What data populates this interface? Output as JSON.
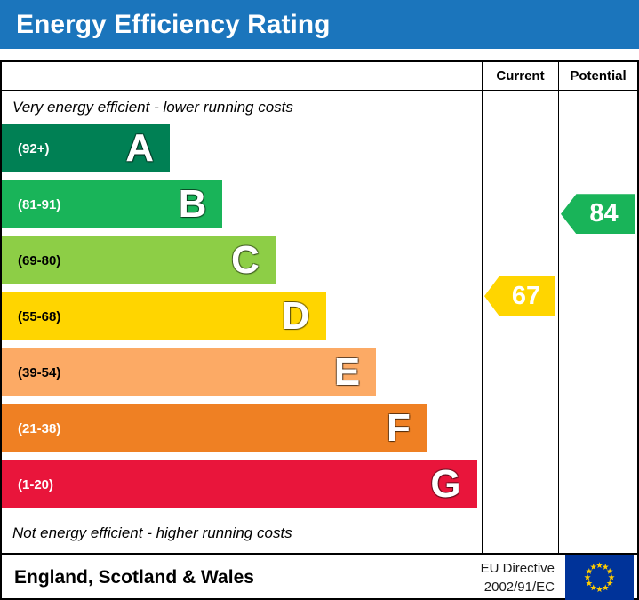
{
  "title": "Energy Efficiency Rating",
  "columns": {
    "current": "Current",
    "potential": "Potential"
  },
  "notes": {
    "top": "Very energy efficient - lower running costs",
    "bottom": "Not energy efficient - higher running costs"
  },
  "chart_data": {
    "type": "bar",
    "title": "Energy Efficiency Rating",
    "categories": [
      "A",
      "B",
      "C",
      "D",
      "E",
      "F",
      "G"
    ],
    "bands": [
      {
        "letter": "A",
        "range": "(92+)",
        "min": 92,
        "max": 100,
        "color": "#008054",
        "range_text_color": "#ffffff",
        "width_pct": 35
      },
      {
        "letter": "B",
        "range": "(81-91)",
        "min": 81,
        "max": 91,
        "color": "#19b459",
        "range_text_color": "#ffffff",
        "width_pct": 46
      },
      {
        "letter": "C",
        "range": "(69-80)",
        "min": 69,
        "max": 80,
        "color": "#8dce46",
        "range_text_color": "#000000",
        "width_pct": 57
      },
      {
        "letter": "D",
        "range": "(55-68)",
        "min": 55,
        "max": 68,
        "color": "#ffd500",
        "range_text_color": "#000000",
        "width_pct": 67.5
      },
      {
        "letter": "E",
        "range": "(39-54)",
        "min": 39,
        "max": 54,
        "color": "#fcaa65",
        "range_text_color": "#000000",
        "width_pct": 78
      },
      {
        "letter": "F",
        "range": "(21-38)",
        "min": 21,
        "max": 38,
        "color": "#ef8023",
        "range_text_color": "#ffffff",
        "width_pct": 88.5
      },
      {
        "letter": "G",
        "range": "(1-20)",
        "min": 1,
        "max": 20,
        "color": "#e9153b",
        "range_text_color": "#ffffff",
        "width_pct": 99
      }
    ],
    "current": {
      "value": 67,
      "band": "D",
      "color": "#ffd500"
    },
    "potential": {
      "value": 84,
      "band": "B",
      "color": "#19b459"
    }
  },
  "footer": {
    "region": "England, Scotland & Wales",
    "directive": [
      "EU Directive",
      "2002/91/EC"
    ],
    "eu_flag": {
      "background": "#003399",
      "stars": "#ffcc00"
    }
  },
  "theme": {
    "title_bg": "#1b75bc",
    "title_color": "#ffffff",
    "border_color": "#000000"
  }
}
